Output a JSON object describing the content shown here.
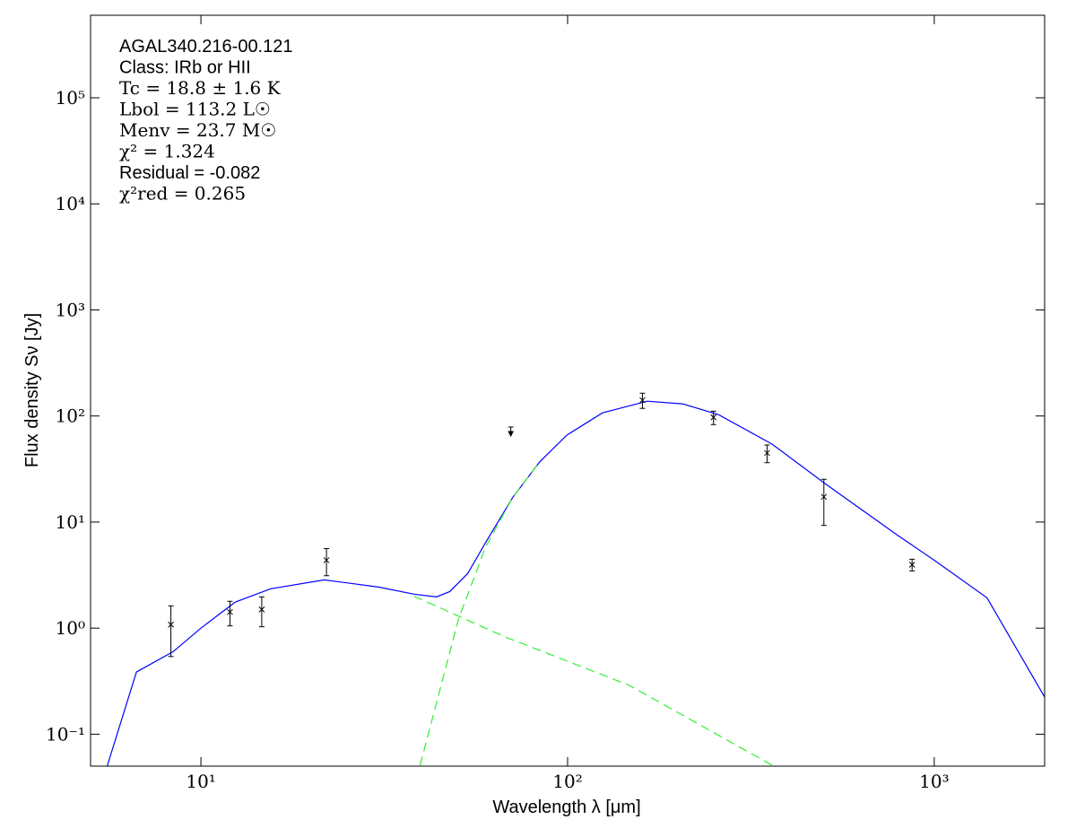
{
  "chart_data": {
    "type": "line",
    "xlabel": "Wavelength λ [μm]",
    "ylabel": "Flux density Sν [Jy]",
    "xlog": true,
    "ylog": true,
    "xlim": [
      5,
      2000
    ],
    "ylim": [
      0.05,
      600000
    ],
    "xticks": [
      {
        "value": 10,
        "label": "10¹"
      },
      {
        "value": 100,
        "label": "10²"
      },
      {
        "value": 1000,
        "label": "10³"
      }
    ],
    "yticks": [
      {
        "value": 0.1,
        "label": "10⁻¹"
      },
      {
        "value": 1,
        "label": "10⁰"
      },
      {
        "value": 10,
        "label": "10¹"
      },
      {
        "value": 100,
        "label": "10²"
      },
      {
        "value": 1000,
        "label": "10³"
      },
      {
        "value": 10000,
        "label": "10⁴"
      },
      {
        "value": 100000,
        "label": "10⁵"
      }
    ],
    "annotations": [
      "AGAL340.216-00.121",
      "Class: IRb or HII",
      "Tc = 18.8 ± 1.6 K",
      "Lbol = 113.2 L☉",
      "Menv = 23.7 M☉",
      "χ² = 1.324",
      "Residual = -0.082",
      "χ²red = 0.265"
    ],
    "series": [
      {
        "color": "#0000ff",
        "style": "solid",
        "x": [
          5.55,
          6.67,
          8.4,
          10,
          12.4,
          15.5,
          21.7,
          30.5,
          38.1,
          43.9,
          47.7,
          53.4,
          59.8,
          70.8,
          83.9,
          99.5,
          124.5,
          165,
          206,
          258,
          361,
          507,
          794,
          1000,
          1393,
          2000
        ],
        "values": [
          0.05,
          0.386,
          0.6,
          1.0,
          1.76,
          2.35,
          2.85,
          2.44,
          2.09,
          1.97,
          2.21,
          3.27,
          6.44,
          17.0,
          36.9,
          66,
          107,
          138,
          130,
          103,
          54.4,
          22.7,
          7.52,
          4.37,
          1.93,
          0.224
        ]
      },
      {
        "color": "#33ee33",
        "style": "dashed",
        "x": [
          38.1,
          66.8,
          147,
          361
        ],
        "values": [
          2.0,
          0.84,
          0.29,
          0.051
        ]
      },
      {
        "color": "#33ee33",
        "style": "dashed",
        "x": [
          39.6,
          50.5,
          59.8,
          70.8,
          83.9
        ],
        "values": [
          0.051,
          1.24,
          5.84,
          17.0,
          36.9
        ]
      }
    ],
    "points": {
      "color": "#000000",
      "x": [
        8.28,
        12,
        14.65,
        22,
        160,
        250,
        350,
        500,
        870
      ],
      "values": [
        1.08,
        1.42,
        1.5,
        4.37,
        141,
        97,
        44.8,
        17.3,
        3.96
      ],
      "errors": [
        0.54,
        0.37,
        0.47,
        1.25,
        23,
        14,
        8.5,
        8,
        0.5
      ]
    },
    "upper_limits": {
      "color": "#000000",
      "x": [
        70
      ],
      "values": [
        72.8
      ]
    }
  }
}
